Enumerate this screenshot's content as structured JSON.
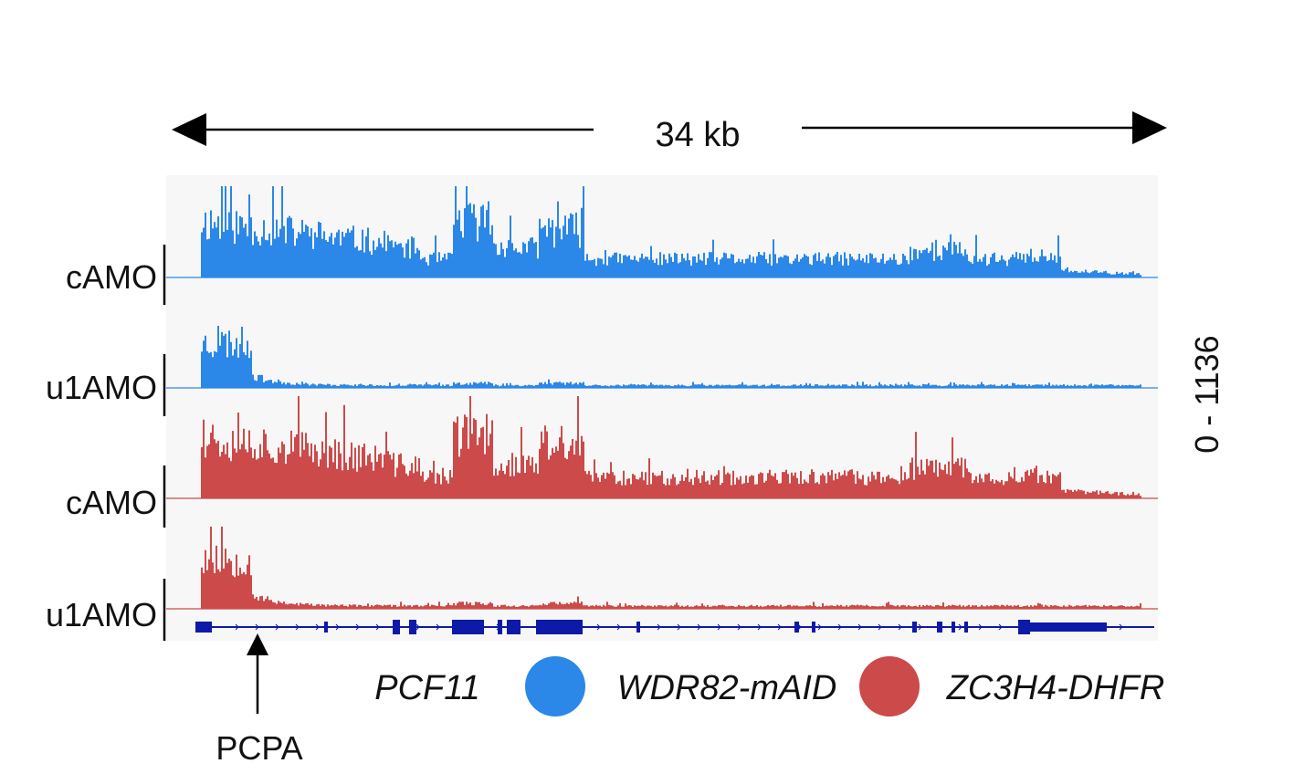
{
  "scale": {
    "label": "34 kb"
  },
  "track_range": "0 - 1136",
  "tracks": [
    {
      "label": "cAMO",
      "color": "#2b87e8",
      "seed": 11,
      "profile": "camo_blue"
    },
    {
      "label": "u1AMO",
      "color": "#2b87e8",
      "seed": 23,
      "profile": "u1_blue"
    },
    {
      "label": "cAMO",
      "color": "#cc4a4a",
      "seed": 37,
      "profile": "camo_red"
    },
    {
      "label": "u1AMO",
      "color": "#cc4a4a",
      "seed": 53,
      "profile": "u1_red"
    }
  ],
  "gene": {
    "name": "PCF11",
    "color": "#0d1aa8"
  },
  "annotation": {
    "label": "PCPA"
  },
  "legend": [
    {
      "label": "WDR82-mAID",
      "color": "#2b87e8"
    },
    {
      "label": "ZC3H4-DHFR",
      "color": "#cc4a4a"
    }
  ],
  "panel_background": "#f7f7f7"
}
